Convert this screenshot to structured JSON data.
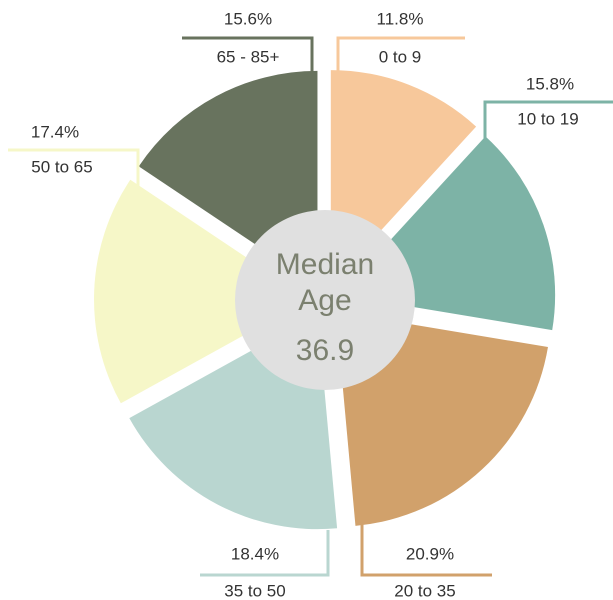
{
  "chart_data": {
    "type": "pie",
    "center_label": "Median\nAge",
    "center_value": 36.9,
    "categories": [
      "0 to 9",
      "10 to 19",
      "20 to 35",
      "35 to 50",
      "50 to 65",
      "65 - 85+"
    ],
    "values": [
      11.8,
      15.8,
      20.9,
      18.4,
      17.4,
      15.6
    ],
    "value_labels": [
      "11.8%",
      "15.8%",
      "20.9%",
      "18.4%",
      "17.4%",
      "15.6%"
    ],
    "colors": [
      "#f7c89b",
      "#7db3a6",
      "#d1a16b",
      "#b9d6d0",
      "#f6f7c8",
      "#68735e"
    ]
  }
}
